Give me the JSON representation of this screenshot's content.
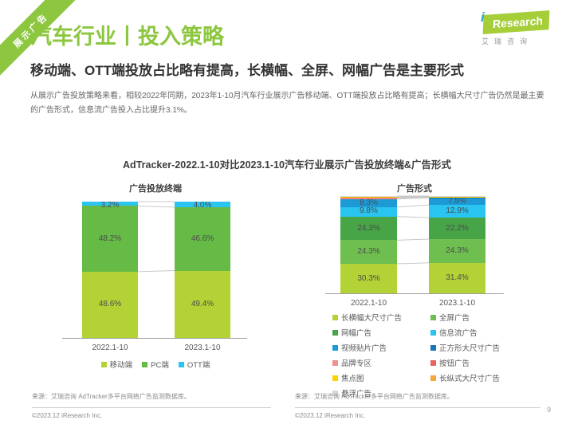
{
  "header": {
    "ribbon": "展示广告",
    "title": "汽车行业丨投入策略",
    "subtitle": "移动端、OTT端投放占比略有提高，长横幅、全屏、网幅广告是主要形式",
    "description": "从展示广告投放策略来看，相较2022年同期，2023年1-10月汽车行业展示广告移动端、OTT端投放占比略有提高；长横幅大尺寸广告仍然是最主要的广告形式，信息流广告投入占比提升3.1%。"
  },
  "logo": {
    "i": "i",
    "brand": "Research",
    "caption": "艾瑞咨询"
  },
  "chart_section_title": "AdTracker-2022.1-10对比2023.1-10汽车行业展示广告投放终端&广告形式",
  "chart_data": [
    {
      "type": "bar",
      "stacked": true,
      "title": "广告投放终端",
      "unit": "%",
      "ylim": [
        0,
        100
      ],
      "grid": false,
      "legend_position": "bottom",
      "categories": [
        "2022.1-10",
        "2023.1-10"
      ],
      "series": [
        {
          "name": "移动端",
          "color": "#b2d235",
          "values": [
            48.6,
            49.4
          ],
          "labels": [
            "48.6%",
            "49.4%"
          ]
        },
        {
          "name": "PC端",
          "color": "#65bb46",
          "values": [
            48.2,
            46.6
          ],
          "labels": [
            "48.2%",
            "46.6%"
          ]
        },
        {
          "name": "OTT端",
          "color": "#29c4f0",
          "values": [
            3.2,
            4.0
          ],
          "labels": [
            "3.2%",
            "4.0%"
          ]
        }
      ]
    },
    {
      "type": "bar",
      "stacked": true,
      "title": "广告形式",
      "unit": "%",
      "ylim": [
        0,
        100
      ],
      "grid": false,
      "legend_position": "bottom",
      "categories": [
        "2022.1-10",
        "2023.1-10"
      ],
      "series": [
        {
          "name": "长横幅大尺寸广告",
          "color": "#b2d235",
          "values": [
            30.3,
            31.4
          ],
          "labels": [
            "30.3%",
            "31.4%"
          ]
        },
        {
          "name": "全屏广告",
          "color": "#6ebf50",
          "values": [
            24.3,
            24.3
          ],
          "labels": [
            "24.3%",
            "24.3%"
          ]
        },
        {
          "name": "网幅广告",
          "color": "#47a447",
          "values": [
            24.3,
            22.2
          ],
          "labels": [
            "24.3%",
            "22.2%"
          ]
        },
        {
          "name": "信息流广告",
          "color": "#29c4f0",
          "values": [
            9.8,
            12.9
          ],
          "labels": [
            "9.8%",
            "12.9%"
          ]
        },
        {
          "name": "视频贴片广告",
          "color": "#1d9ad6",
          "values": [
            8.3,
            7.5
          ],
          "labels": [
            "8.3%",
            "7.5%"
          ]
        },
        {
          "name": "正方形大尺寸广告",
          "color": "#1a75bb",
          "values": [
            0.5,
            0.3
          ],
          "labels": [
            "",
            ""
          ],
          "estimated": true
        },
        {
          "name": "品牌专区",
          "color": "#f0908d",
          "values": [
            0.4,
            0.3
          ],
          "labels": [
            "",
            ""
          ],
          "estimated": true
        },
        {
          "name": "按钮广告",
          "color": "#e8635c",
          "values": [
            0.3,
            0.2
          ],
          "labels": [
            "",
            ""
          ],
          "estimated": true
        },
        {
          "name": "焦点图",
          "color": "#fdd100",
          "values": [
            0.9,
            0.4
          ],
          "labels": [
            "",
            ""
          ],
          "estimated": true
        },
        {
          "name": "长纵式大尺寸广告",
          "color": "#f3a93c",
          "values": [
            0.5,
            0.2
          ],
          "labels": [
            "",
            ""
          ],
          "estimated": true
        },
        {
          "name": "悬浮广告",
          "color": "#d8d8d8",
          "values": [
            0.4,
            0.3
          ],
          "labels": [
            "",
            ""
          ],
          "estimated": true
        }
      ],
      "legend_columns": [
        [
          "长横幅大尺寸广告",
          "网幅广告",
          "视频贴片广告",
          "品牌专区",
          "焦点图",
          "悬浮广告"
        ],
        [
          "全屏广告",
          "信息流广告",
          "正方形大尺寸广告",
          "按钮广告",
          "长纵式大尺寸广告"
        ]
      ]
    }
  ],
  "footers": {
    "left": {
      "source": "来源：艾瑞咨询 AdTracker多平台网络广告监测数据库。",
      "copyright": "©2023.12 iResearch Inc."
    },
    "right": {
      "source": "来源：艾瑞咨询 AdTracker多平台网络广告监测数据库。",
      "copyright": "©2023.12 iResearch Inc."
    },
    "page_number": "9"
  }
}
